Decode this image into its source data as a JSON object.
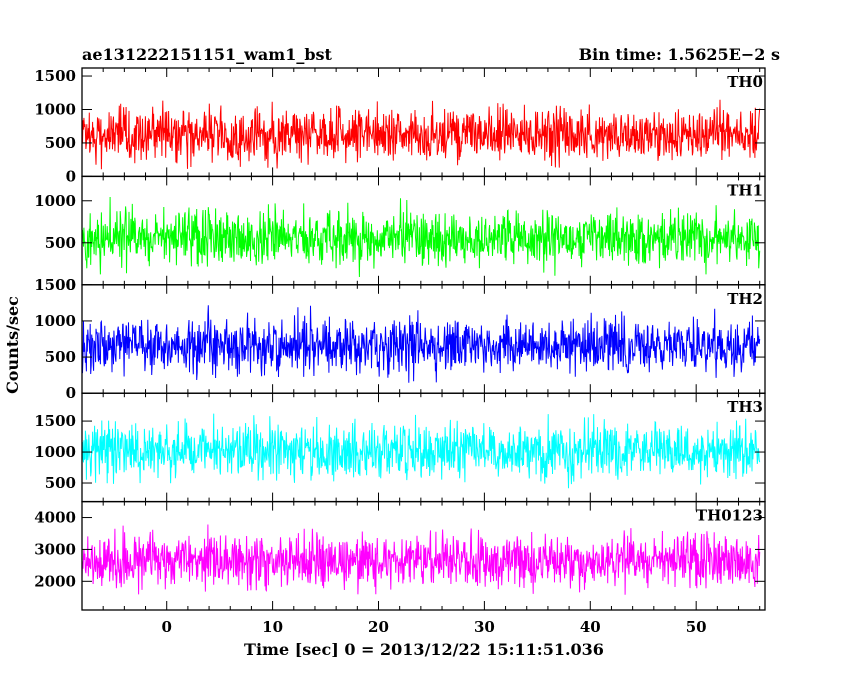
{
  "chart_data": {
    "type": "line",
    "title_left": "ae131222151151_wam1_bst",
    "title_right": "Bin time: 1.5625E−2 s",
    "xlabel": "Time [sec] 0 = 2013/12/22 15:11:51.036",
    "ylabel": "Counts/sec",
    "xlim": [
      -8,
      56.5
    ],
    "x_ticks": [
      0,
      10,
      20,
      30,
      40,
      50
    ],
    "x_tick_labels": [
      "0",
      "10",
      "20",
      "30",
      "40",
      "50"
    ],
    "x_data_range": [
      -8,
      56
    ],
    "bin_time_s": 0.015625,
    "grid": false,
    "panels": [
      {
        "name": "TH0",
        "color": "#ff0000",
        "ylim": [
          0,
          1620
        ],
        "yticks": [
          0,
          500,
          1000,
          1500
        ],
        "ytick_labels": [
          "0",
          "500",
          "1000",
          "1500"
        ],
        "mean": 630,
        "spread": 360,
        "min": 60,
        "max": 1620
      },
      {
        "name": "TH1",
        "color": "#00ff00",
        "ylim": [
          0,
          1290
        ],
        "yticks": [
          0,
          500,
          1000
        ],
        "ytick_labels": [
          "0",
          "500",
          "1000"
        ],
        "mean": 560,
        "spread": 300,
        "min": 40,
        "max": 1290
      },
      {
        "name": "TH2",
        "color": "#0000ff",
        "ylim": [
          0,
          1500
        ],
        "yticks": [
          0,
          500,
          1000,
          1500
        ],
        "ytick_labels": [
          "0",
          "500",
          "1000",
          "1500"
        ],
        "mean": 650,
        "spread": 340,
        "min": 50,
        "max": 1500
      },
      {
        "name": "TH3",
        "color": "#00ffff",
        "ylim": [
          200,
          1950
        ],
        "yticks": [
          500,
          1000,
          1500
        ],
        "ytick_labels": [
          "500",
          "1000",
          "1500"
        ],
        "mean": 1020,
        "spread": 400,
        "min": 210,
        "max": 1950
      },
      {
        "name": "TH0123",
        "color": "#ff00ff",
        "ylim": [
          1100,
          4500
        ],
        "yticks": [
          2000,
          3000,
          4000
        ],
        "ytick_labels": [
          "2000",
          "3000",
          "4000"
        ],
        "mean": 2650,
        "spread": 760,
        "min": 1100,
        "max": 4500
      }
    ]
  }
}
